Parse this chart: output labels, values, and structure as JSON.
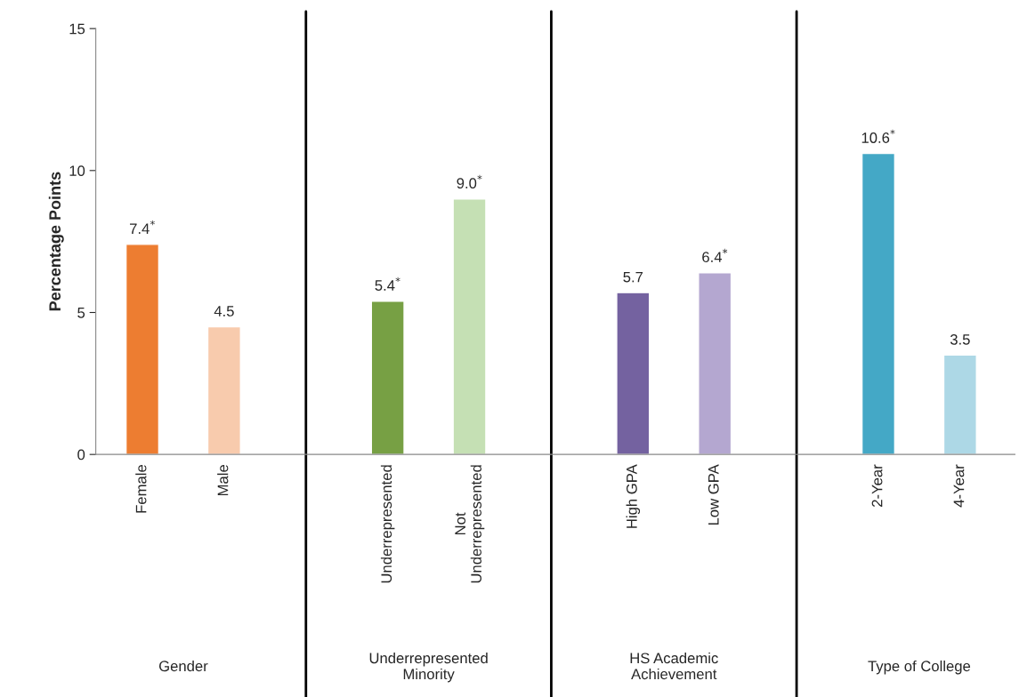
{
  "chart_data": {
    "type": "bar",
    "ylabel": "Percentage Points",
    "categories": [
      "Female",
      "Male",
      "Underrepresented",
      "Not\nUnderrepresented",
      "High GPA",
      "Low GPA",
      "2-Year",
      "4-Year"
    ],
    "values": [
      7.4,
      4.5,
      5.4,
      9.0,
      5.7,
      6.4,
      10.6,
      3.5
    ],
    "colors": [
      "#ed7d31",
      "#f8cbad",
      "#77a044",
      "#c5e0b4",
      "#7462a0",
      "#b4a7d0",
      "#44a8c6",
      "#add8e6"
    ],
    "value_labels": [
      "7.4$^{*}$",
      "4.5",
      "5.4$^{*}$",
      "9.0$^{*}$",
      "5.7",
      "6.4$^{*}$",
      "10.6$^{*}$",
      "3.5"
    ],
    "annotations": [
      "Gender",
      "Underrepresented\nMinority",
      "HS Academic\nAchievement",
      "Type of College"
    ],
    "ylim": [
      0,
      15
    ],
    "yticks": [
      0,
      5,
      10,
      15
    ],
    "grid": false,
    "legend": false
  }
}
